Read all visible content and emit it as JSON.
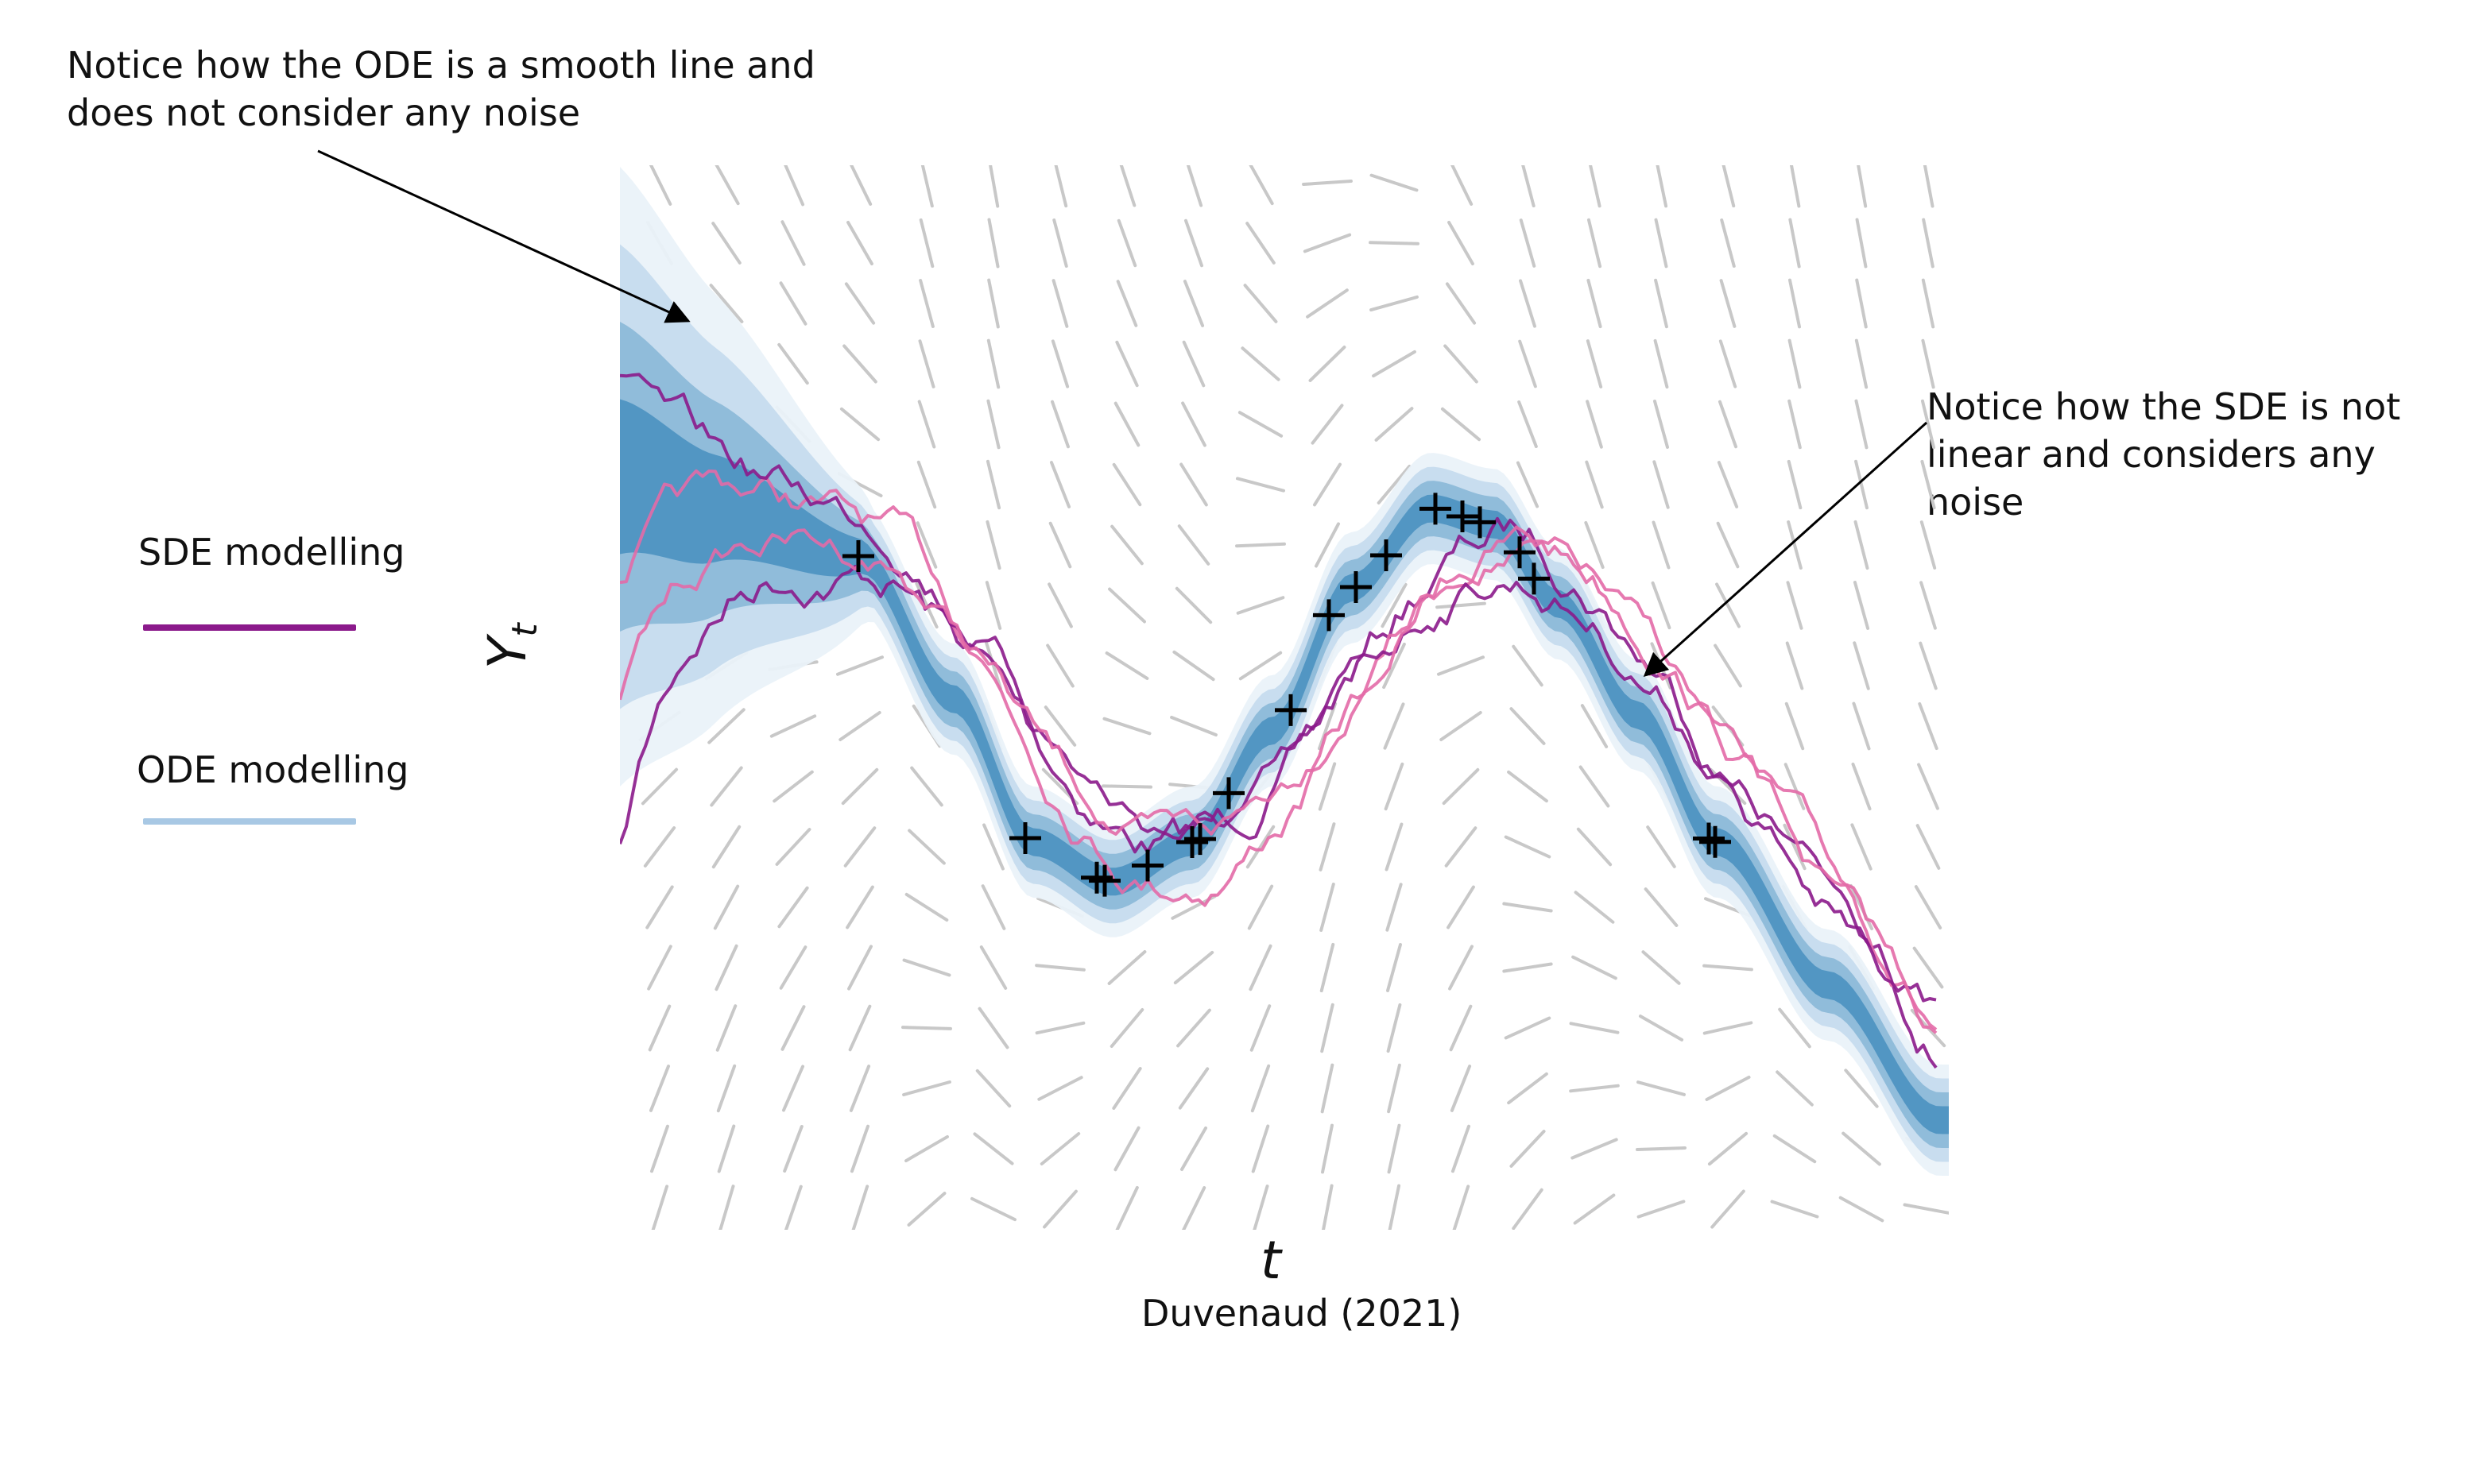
{
  "annotations": {
    "ode_note": "Notice how the ODE is a smooth line and\ndoes not consider any noise",
    "sde_note": "Notice how the SDE is not\nlinear and considers any noise"
  },
  "legend": {
    "sde_label": "SDE modelling",
    "ode_label": "ODE modelling",
    "sde_color": "#8b1a8b",
    "ode_color": "#a8c8e4"
  },
  "axes": {
    "x_label": "t",
    "y_label_main": "Y",
    "y_label_sub": "t"
  },
  "caption": "Duvenaud (2021)",
  "colors": {
    "band_outer": "#eaf2f9",
    "band_mid": "#c6dbee",
    "band_inner": "#8db9d8",
    "band_core": "#4f93c2",
    "sde_dark": "#8b1a8b",
    "sde_light": "#e36aa7",
    "slope_field": "#c8c8c8",
    "markers": "#000000"
  }
}
